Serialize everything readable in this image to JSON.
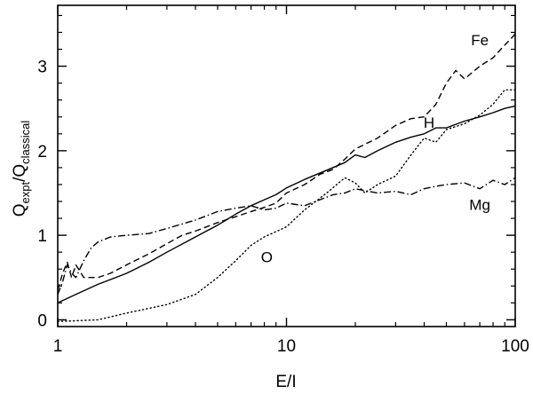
{
  "chart_data": {
    "type": "line",
    "xscale": "log",
    "xlim": [
      1,
      100
    ],
    "ylim": [
      -0.08,
      3.72
    ],
    "xticks": [
      1,
      10,
      100
    ],
    "xtick_labels": [
      "1",
      "10",
      "100"
    ],
    "yticks": [
      0,
      1,
      2,
      3
    ],
    "ytick_labels": [
      "0",
      "1",
      "2",
      "3"
    ],
    "xlabel": "E/I",
    "ylabel": {
      "q1": "Q",
      "sub1": "expt",
      "slash": "/",
      "q2": "Q",
      "sub2": "classical"
    },
    "grid": false,
    "series": [
      {
        "name": "H",
        "linestyle": "solid",
        "x": [
          1.0,
          1.2,
          1.5,
          2.0,
          2.5,
          3.0,
          4.0,
          5.0,
          6.0,
          7.0,
          8.0,
          9.0,
          10.0,
          12.0,
          15.0,
          18.0,
          20.0,
          22.0,
          25.0,
          30.0,
          35.0,
          40.0,
          45.0,
          50.0,
          60.0,
          70.0,
          80.0,
          90.0,
          100.0
        ],
        "y": [
          0.2,
          0.3,
          0.42,
          0.55,
          0.68,
          0.8,
          0.98,
          1.12,
          1.25,
          1.35,
          1.42,
          1.48,
          1.56,
          1.66,
          1.77,
          1.86,
          1.95,
          1.92,
          2.0,
          2.1,
          2.16,
          2.2,
          2.27,
          2.27,
          2.35,
          2.4,
          2.45,
          2.5,
          2.53
        ]
      },
      {
        "name": "Fe",
        "linestyle": "dashed",
        "x": [
          1.0,
          1.05,
          1.1,
          1.15,
          1.2,
          1.3,
          1.5,
          1.7,
          2.0,
          2.5,
          3.0,
          3.5,
          4.0,
          5.0,
          6.0,
          7.0,
          8.0,
          9.0,
          10.0,
          12.0,
          14.0,
          16.0,
          18.0,
          20.0,
          25.0,
          30.0,
          35.0,
          40.0,
          45.0,
          50.0,
          55.0,
          60.0,
          70.0,
          80.0,
          90.0,
          100.0
        ],
        "y": [
          0.35,
          0.55,
          0.68,
          0.5,
          0.65,
          0.5,
          0.5,
          0.55,
          0.65,
          0.78,
          0.9,
          1.0,
          1.05,
          1.15,
          1.22,
          1.28,
          1.33,
          1.38,
          1.5,
          1.6,
          1.72,
          1.78,
          1.9,
          2.02,
          2.15,
          2.3,
          2.38,
          2.4,
          2.55,
          2.8,
          2.95,
          2.85,
          3.0,
          3.1,
          3.25,
          3.38
        ]
      },
      {
        "name": "O",
        "linestyle": "dotted",
        "x": [
          1.0,
          1.5,
          2.0,
          3.0,
          4.0,
          5.0,
          6.0,
          7.0,
          8.0,
          10.0,
          12.0,
          15.0,
          18.0,
          20.0,
          22.0,
          25.0,
          30.0,
          35.0,
          40.0,
          45.0,
          50.0,
          60.0,
          70.0,
          80.0,
          90.0,
          100.0
        ],
        "y": [
          -0.02,
          0.0,
          0.08,
          0.18,
          0.3,
          0.5,
          0.7,
          0.88,
          0.98,
          1.1,
          1.3,
          1.5,
          1.68,
          1.62,
          1.5,
          1.6,
          1.7,
          1.95,
          2.15,
          2.1,
          2.25,
          2.32,
          2.42,
          2.55,
          2.72,
          2.72
        ]
      },
      {
        "name": "Mg",
        "linestyle": "dashdot",
        "x": [
          1.0,
          1.05,
          1.1,
          1.15,
          1.2,
          1.3,
          1.4,
          1.5,
          1.7,
          2.0,
          2.5,
          3.0,
          4.0,
          5.0,
          6.0,
          7.0,
          8.0,
          9.0,
          10.0,
          12.0,
          14.0,
          16.0,
          18.0,
          20.0,
          25.0,
          30.0,
          35.0,
          40.0,
          45.0,
          50.0,
          60.0,
          70.0,
          80.0,
          90.0,
          100.0
        ],
        "y": [
          0.3,
          0.45,
          0.65,
          0.55,
          0.5,
          0.7,
          0.85,
          0.92,
          0.98,
          1.0,
          1.02,
          1.08,
          1.18,
          1.28,
          1.32,
          1.35,
          1.3,
          1.32,
          1.38,
          1.35,
          1.42,
          1.48,
          1.5,
          1.55,
          1.5,
          1.52,
          1.48,
          1.55,
          1.58,
          1.6,
          1.62,
          1.55,
          1.65,
          1.6,
          1.68
        ]
      }
    ],
    "annotations": [
      {
        "text": "Fe",
        "series": "Fe",
        "x": 70,
        "y": 3.25
      },
      {
        "text": "H",
        "series": "H",
        "x": 42,
        "y": 2.27
      },
      {
        "text": "Mg",
        "series": "Mg",
        "x": 70,
        "y": 1.3
      },
      {
        "text": "O",
        "series": "O",
        "x": 8.2,
        "y": 0.68
      }
    ]
  }
}
